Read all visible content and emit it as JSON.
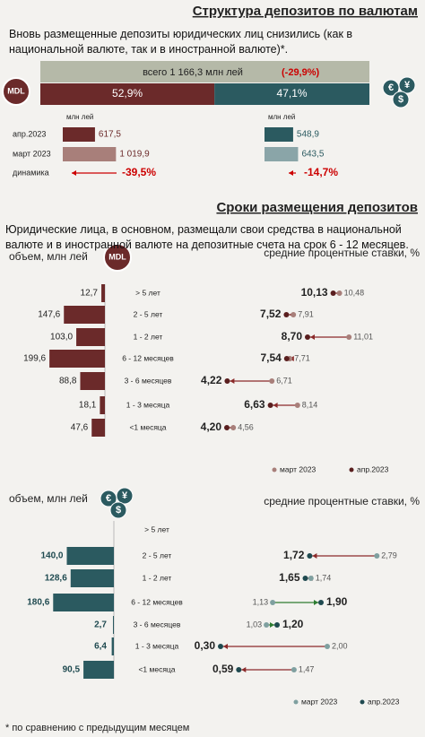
{
  "header": {
    "title": "Структура депозитов по валютам",
    "intro": "Вновь размещенные депозиты юридических лиц снизились (как в национальной валюте, так и в иностранной валюте)*."
  },
  "total": {
    "label": "всего 1 166,3 млн лей",
    "change": "(-29,9%)"
  },
  "mdl_icon": "MDL",
  "section2": {
    "title": "Сроки размещения депозитов",
    "intro": "Юридические лица, в основном, размещали свои средства в национальной валюте и в иностранной валюте на депозитные счета на срок 6  - 12 месяцев.",
    "volume_label": "объем, млн лей",
    "rates_label": "средние процентные ставки, %"
  },
  "footnote": "* по сравнению с предыдущим месяцем",
  "chart_data": [
    {
      "type": "stacked-bar",
      "values": [
        52.9,
        47.1
      ],
      "value_labels": [
        "52,9%",
        "47,1%"
      ],
      "colors": [
        "#6b2a2a",
        "#2b5a60"
      ],
      "xlim": [
        0,
        100
      ]
    },
    {
      "type": "bar",
      "unit": "млн лей",
      "categories": [
        "апр.2023",
        "март 2023"
      ],
      "values": [
        617.5,
        1019.9
      ],
      "value_labels": [
        "617,5",
        "1 019,9"
      ],
      "colors": [
        "#6b2a2a",
        "#a87f7a"
      ],
      "label_color": "#6b2a2a",
      "xlim": [
        0,
        1100
      ],
      "change_label": "динамика",
      "change": "-39,5%"
    },
    {
      "type": "bar",
      "unit": "млн лей",
      "values": [
        548.9,
        643.5
      ],
      "value_labels": [
        "548,9",
        "643,5"
      ],
      "colors": [
        "#2b5a60",
        "#8aa5a8"
      ],
      "label_color": "#2b5a60",
      "xlim": [
        0,
        1100
      ],
      "change": "-14,7%"
    },
    {
      "type": "volume",
      "categories": [
        "> 5 лет",
        "2 - 5 лет",
        "1 - 2 лет",
        "6 - 12 месяцев",
        "3 - 6 месяцев",
        "1 - 3 месяца",
        "<1 месяца"
      ],
      "values": [
        12.7,
        147.6,
        103.0,
        199.6,
        88.8,
        18.1,
        47.6
      ],
      "value_labels": [
        "12,7",
        "147,6",
        "103,0",
        "199,6",
        "88,8",
        "18,1",
        "47,6"
      ],
      "color": "#6b2a2a",
      "xlim": [
        0,
        200
      ]
    },
    {
      "type": "dot",
      "xlim": [
        4,
        11.5
      ],
      "series": [
        {
          "name": "март 2023",
          "color": "#a87f7a",
          "values": [
            10.48,
            7.91,
            11.01,
            7.71,
            6.71,
            8.14,
            4.56
          ],
          "value_labels": [
            "10,48",
            "7,91",
            "11,01",
            "7,71",
            "6,71",
            "8,14",
            "4,56"
          ]
        },
        {
          "name": "апр.2023",
          "color": "#5a1f1f",
          "values": [
            10.13,
            7.52,
            8.7,
            7.54,
            4.22,
            6.63,
            4.2
          ],
          "value_labels": [
            "10,13",
            "7,52",
            "8,70",
            "7,54",
            "4,22",
            "6,63",
            "4,20"
          ]
        }
      ]
    },
    {
      "type": "volume",
      "categories": [
        "> 5 лет",
        "2 - 5 лет",
        "1 - 2 лет",
        "6 - 12 месяцев",
        "3 - 6 месяцев",
        "1 - 3 месяца",
        "<1 месяца"
      ],
      "values": [
        null,
        140.0,
        128.6,
        180.6,
        2.7,
        6.4,
        90.5
      ],
      "value_labels": [
        null,
        "140,0",
        "128,6",
        "180,6",
        "2,7",
        "6,4",
        "90,5"
      ],
      "color": "#2b5a60",
      "xlim": [
        0,
        200
      ]
    },
    {
      "type": "dot",
      "xlim": [
        0,
        3
      ],
      "series": [
        {
          "name": "март 2023",
          "color": "#7fa0a0",
          "values": [
            null,
            2.79,
            1.74,
            1.13,
            1.03,
            2.0,
            1.47
          ],
          "value_labels": [
            null,
            "2,79",
            "1,74",
            "1,13",
            "1,03",
            "2,00",
            "1,47"
          ]
        },
        {
          "name": "апр.2023",
          "color": "#1f4a50",
          "values": [
            null,
            1.72,
            1.65,
            1.9,
            1.2,
            0.3,
            0.59
          ],
          "value_labels": [
            null,
            "1,72",
            "1,65",
            "1,90",
            "1,20",
            "0,30",
            "0,59"
          ]
        }
      ]
    }
  ]
}
